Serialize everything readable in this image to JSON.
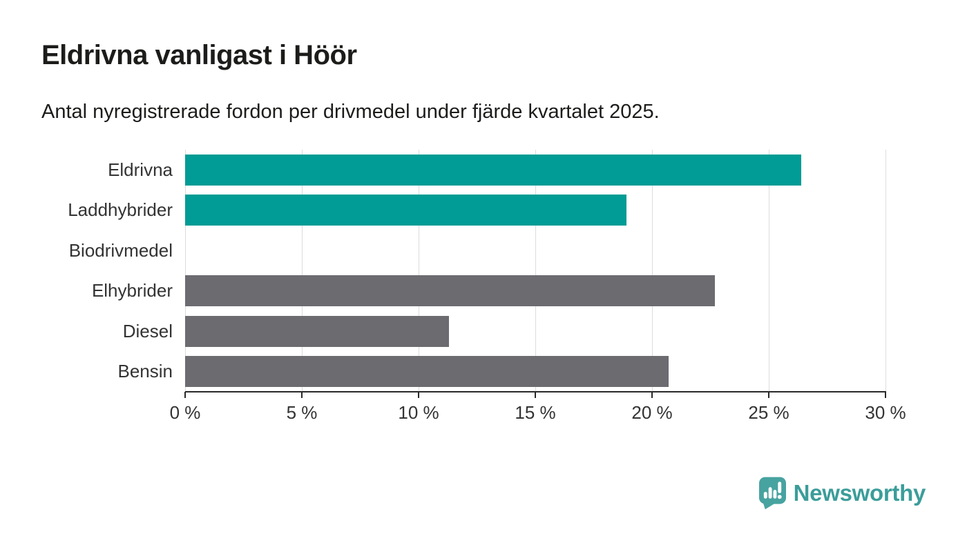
{
  "chart_data": {
    "type": "bar",
    "orientation": "horizontal",
    "title": "Eldrivna vanligast i Höör",
    "subtitle": "Antal nyregistrerade fordon per drivmedel under fjärde kvartalet 2025.",
    "categories": [
      "Eldrivna",
      "Laddhybrider",
      "Biodrivmedel",
      "Elhybrider",
      "Diesel",
      "Bensin"
    ],
    "values": [
      26.4,
      18.9,
      0,
      22.7,
      11.3,
      20.7
    ],
    "unit": "%",
    "bar_colors": [
      "#009c95",
      "#009c95",
      "#6b6b70",
      "#6b6b70",
      "#6b6b70",
      "#6b6b70"
    ],
    "accent_color": "#009c95",
    "neutral_color": "#6b6b70",
    "xlim": [
      0,
      30
    ],
    "x_tick_step": 5,
    "x_tick_labels": [
      "0 %",
      "5 %",
      "10 %",
      "15 %",
      "20 %",
      "25 %",
      "30 %"
    ],
    "grid": "vertical",
    "gridline_color": "#dcdcdc",
    "axis_color": "#282828",
    "label_color": "#333333",
    "legend": "none",
    "value_labels": "none"
  },
  "branding": {
    "name": "Newsworthy",
    "text_color": "#3b9d9a",
    "icon": "newsworthy-pin-barchart-icon",
    "icon_color": "#47a3a0",
    "icon_mark_color": "#ffffff"
  }
}
